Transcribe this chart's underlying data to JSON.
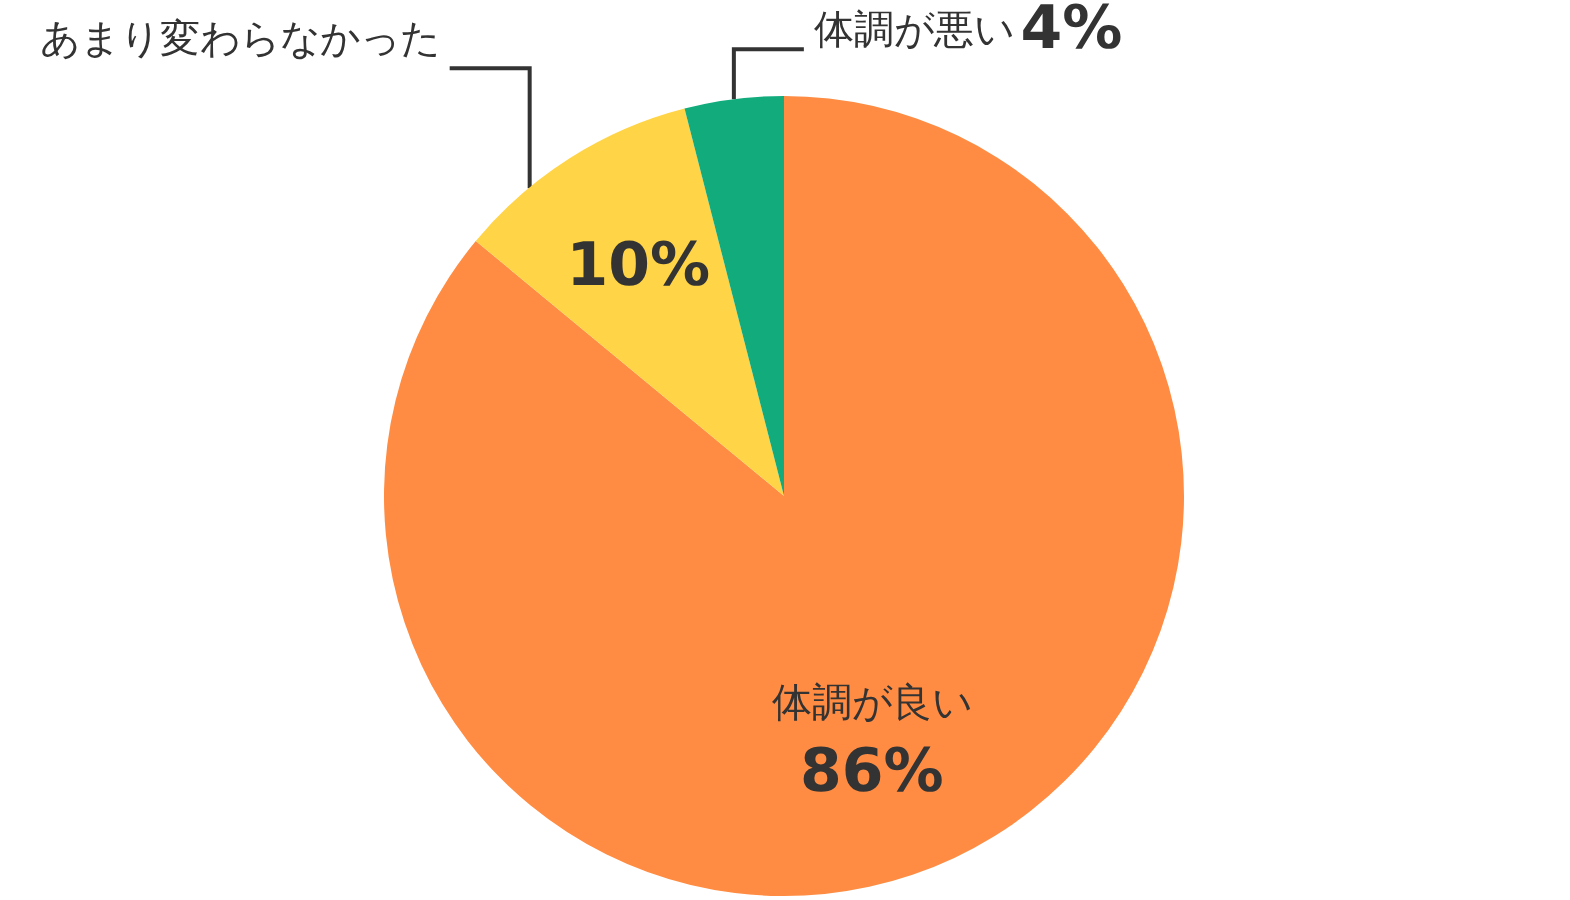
{
  "chart_data": {
    "type": "pie",
    "categories": [
      "体調が良い",
      "あまり変わらなかった",
      "体調が悪い"
    ],
    "values": [
      86,
      10,
      4
    ],
    "value_labels": [
      "86%",
      "10%",
      "4%"
    ],
    "colors": [
      "#ff8c42",
      "#ffd446",
      "#12ab7c"
    ],
    "legend": false
  }
}
